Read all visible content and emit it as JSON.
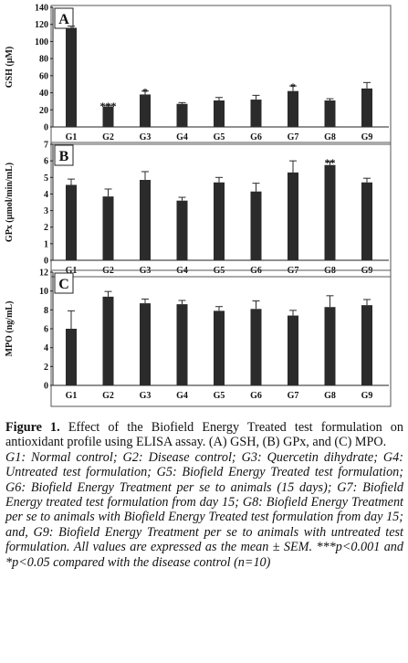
{
  "chart_data": [
    {
      "type": "bar",
      "panel": "A",
      "ylabel": "GSH (µM)",
      "categories": [
        "G1",
        "G2",
        "G3",
        "G4",
        "G5",
        "G6",
        "G7",
        "G8",
        "G9"
      ],
      "values": [
        116,
        24,
        38,
        27,
        31,
        32,
        42,
        31,
        45
      ],
      "errors": [
        2,
        1.5,
        4,
        1.5,
        3.5,
        5,
        6,
        2,
        7
      ],
      "significance": [
        "",
        "***",
        "*",
        "",
        "",
        "",
        "*",
        "",
        ""
      ],
      "ylim": [
        0,
        140
      ],
      "yticks": [
        0,
        20,
        40,
        60,
        80,
        100,
        120,
        140
      ],
      "grid": false
    },
    {
      "type": "bar",
      "panel": "B",
      "ylabel": "GPx (µmol/min/mL)",
      "categories": [
        "G1",
        "G2",
        "G3",
        "G4",
        "G5",
        "G6",
        "G7",
        "G8",
        "G9"
      ],
      "values": [
        4.55,
        3.85,
        4.85,
        3.6,
        4.7,
        4.15,
        5.3,
        5.75,
        4.7
      ],
      "errors": [
        0.35,
        0.45,
        0.5,
        0.2,
        0.3,
        0.5,
        0.7,
        0.2,
        0.25
      ],
      "significance": [
        "",
        "",
        "",
        "",
        "",
        "",
        "",
        "**",
        ""
      ],
      "ylim": [
        0,
        7
      ],
      "yticks": [
        0,
        1,
        2,
        3,
        4,
        5,
        6,
        7
      ],
      "grid": false
    },
    {
      "type": "bar",
      "panel": "C",
      "ylabel": "MPO (ng/mL)",
      "categories": [
        "G1",
        "G2",
        "G3",
        "G4",
        "G5",
        "G6",
        "G7",
        "G8",
        "G9"
      ],
      "values": [
        6.0,
        9.4,
        8.7,
        8.6,
        7.9,
        8.1,
        7.4,
        8.3,
        8.5
      ],
      "errors": [
        1.9,
        0.55,
        0.45,
        0.4,
        0.45,
        0.85,
        0.55,
        1.2,
        0.6
      ],
      "significance": [
        "",
        "",
        "",
        "",
        "",
        "",
        "",
        "",
        ""
      ],
      "ylim": [
        0,
        12
      ],
      "yticks": [
        0,
        2,
        4,
        6,
        8,
        10,
        12
      ],
      "grid": false
    }
  ],
  "caption": {
    "label": "Figure 1.",
    "text": " Effect of the Biofield Energy Treated test formulation on antioxidant profile using ELISA assay. (A) GSH, (B) GPx, and (C) MPO.",
    "legend": "G1: Normal control; G2: Disease control; G3: Quercetin dihydrate; G4: Untreated test formulation; G5: Biofield Energy Treated test formulation; G6: Biofield Energy Treatment per se to animals (15 days); G7: Biofield Energy treated test formulation from day 15; G8: Biofield Energy Treatment per se to animals with Biofield Energy Treated test formulation from day 15; and, G9: Biofield Energy Treatment per se to animals with untreated test formulation. All values are expressed as the mean ± SEM. ***p<0.001 and *p<0.05 compared with the disease control (n=10)"
  }
}
